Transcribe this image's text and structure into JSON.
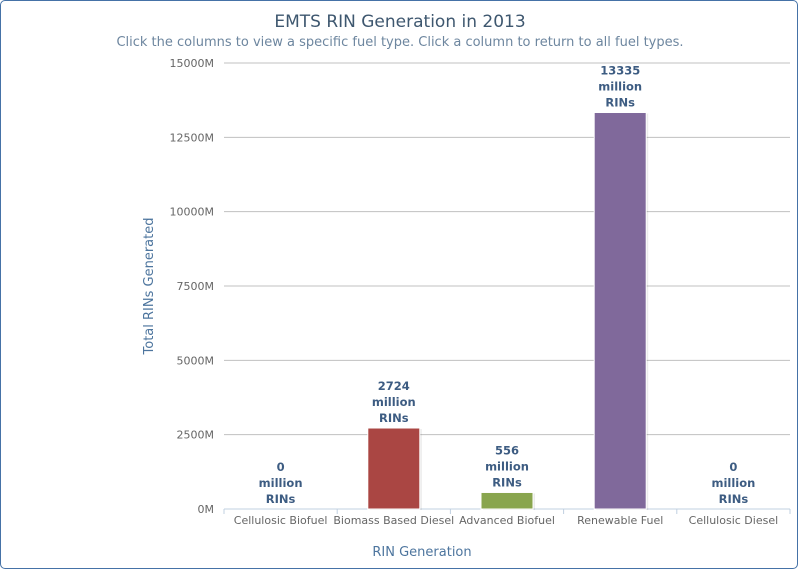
{
  "chart_data": {
    "type": "bar",
    "title": "EMTS RIN Generation in 2013",
    "subtitle": "Click the columns to view a specific fuel type. Click a column to return to all fuel types.",
    "xlabel": "RIN Generation",
    "ylabel": "Total RINs Generated",
    "categories": [
      "Cellulosic Biofuel",
      "Biomass Based Diesel",
      "Advanced Biofuel",
      "Renewable Fuel",
      "Cellulosic Diesel"
    ],
    "values": [
      0,
      2724,
      556,
      13335,
      0
    ],
    "value_unit": "million RINs",
    "colors": [
      "#4572a7",
      "#aa4643",
      "#89a54e",
      "#80699b",
      "#3d96ae"
    ],
    "ylim": [
      0,
      15000
    ],
    "yticks": [
      0,
      2500,
      5000,
      7500,
      10000,
      12500,
      15000
    ],
    "ytick_labels": [
      "0M",
      "2500M",
      "5000M",
      "7500M",
      "10000M",
      "12500M",
      "15000M"
    ],
    "data_label_suffix": [
      "million",
      "RINs"
    ],
    "grid": true,
    "legend": "none"
  }
}
